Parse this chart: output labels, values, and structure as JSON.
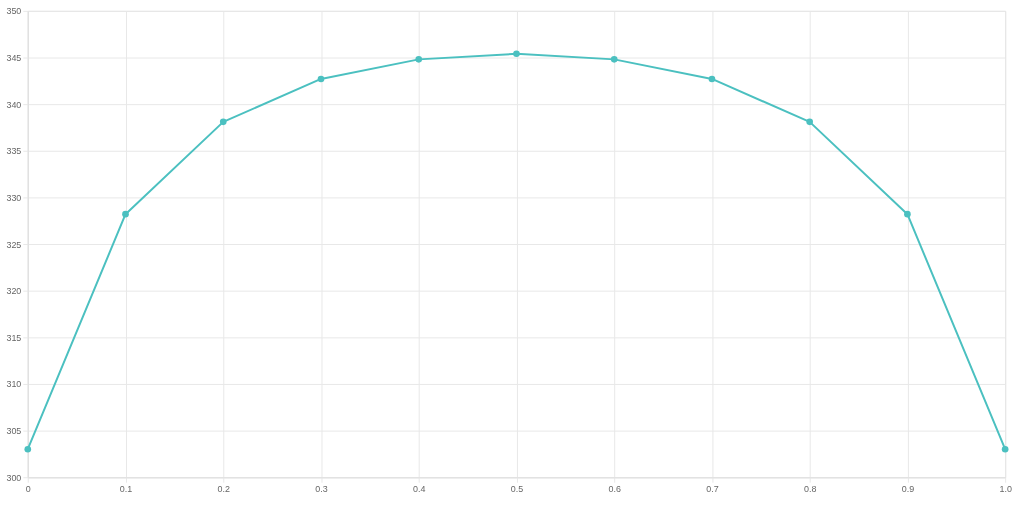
{
  "chart_data": {
    "type": "line",
    "x": [
      0,
      0.1,
      0.2,
      0.3,
      0.4,
      0.5,
      0.6,
      0.7,
      0.8,
      0.9,
      1.0
    ],
    "series": [
      {
        "color": "#4bc0c0",
        "values": [
          303.0,
          328.2,
          338.1,
          342.7,
          344.8,
          345.4,
          344.8,
          342.7,
          338.1,
          328.2,
          303.0
        ]
      }
    ],
    "xlim": [
      0,
      1
    ],
    "xticks": [
      0,
      0.1,
      0.2,
      0.3,
      0.4,
      0.5,
      0.6,
      0.7,
      0.8,
      0.9,
      {
        "value": 1,
        "label": "1.0"
      }
    ],
    "ylim": [
      300,
      350
    ],
    "yticks": [
      300,
      305,
      310,
      315,
      320,
      325,
      330,
      335,
      340,
      345,
      350
    ],
    "grid": true,
    "marker": "circle",
    "line_style": "solid"
  }
}
